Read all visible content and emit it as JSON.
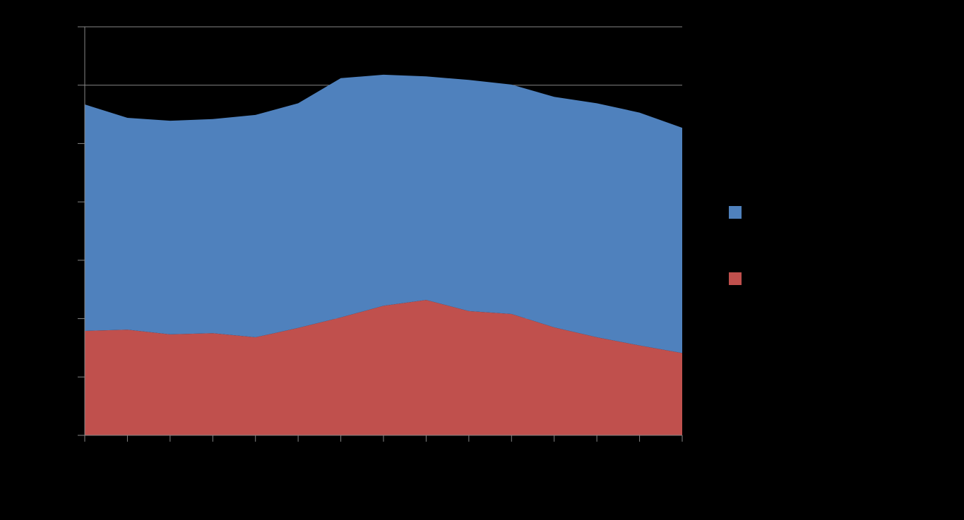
{
  "chart_data": {
    "type": "area",
    "stacked": true,
    "categories": [
      null,
      null,
      null,
      null,
      null,
      null,
      null,
      null,
      null,
      null,
      null,
      null,
      null,
      null,
      null
    ],
    "series": [
      {
        "color": "#c0504d",
        "values": [
          1.79,
          1.81,
          1.73,
          1.75,
          1.68,
          1.84,
          2.02,
          2.22,
          2.32,
          2.13,
          2.08,
          1.85,
          1.68,
          1.54,
          1.41
        ]
      },
      {
        "color": "#4f81bd",
        "values": [
          3.88,
          3.63,
          3.66,
          3.67,
          3.81,
          3.85,
          4.1,
          3.96,
          3.83,
          3.96,
          3.93,
          3.95,
          4.01,
          3.99,
          3.86
        ]
      }
    ],
    "ylim": [
      0,
      7
    ],
    "yticks": [
      0,
      1,
      2,
      3,
      4,
      5,
      6,
      7
    ],
    "grid": true
  }
}
